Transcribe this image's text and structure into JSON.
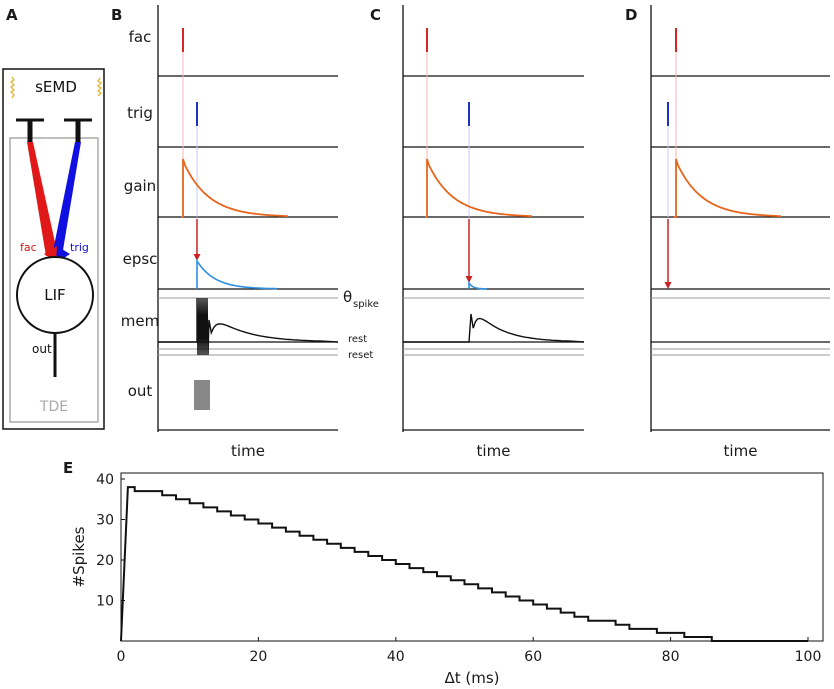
{
  "panels": {
    "A": {
      "letter": "A",
      "top_label": "sEMD",
      "fac_label": "fac",
      "trig_label": "trig",
      "neuron_label": "LIF",
      "out_label": "out",
      "box_label": "TDE"
    },
    "B": {
      "letter": "B"
    },
    "C": {
      "letter": "C"
    },
    "D": {
      "letter": "D"
    },
    "E": {
      "letter": "E"
    }
  },
  "traces": {
    "row_labels": [
      "fac",
      "trig",
      "gain",
      "epsc",
      "mem",
      "out"
    ],
    "xlabel": "time",
    "theta_label": "θ",
    "theta_sub": "spike",
    "rest_label": "rest",
    "reset_label": "reset"
  },
  "colors": {
    "fac": "#d62728",
    "trig": "#1f2fbf",
    "gain": "#e8661c",
    "epsc": "#2f8fe0",
    "arrow": "#cc2222",
    "threshold_line": "#999999",
    "tde_box": "#aaaaaa",
    "semd": "#e0b020"
  },
  "chart_data": {
    "type": "line",
    "title": "",
    "xlabel": "Δt (ms)",
    "ylabel": "#Spikes",
    "xlim": [
      0,
      100
    ],
    "ylim": [
      0,
      40
    ],
    "xticks": [
      0,
      20,
      40,
      60,
      80,
      100
    ],
    "yticks": [
      10,
      20,
      30,
      40
    ],
    "x": [
      0,
      1,
      2,
      4,
      6,
      8,
      10,
      12,
      14,
      16,
      18,
      20,
      22,
      24,
      26,
      28,
      30,
      32,
      34,
      36,
      38,
      40,
      42,
      44,
      46,
      48,
      50,
      52,
      54,
      56,
      58,
      60,
      62,
      64,
      66,
      68,
      70,
      72,
      74,
      76,
      78,
      80,
      82,
      84,
      86,
      88,
      90,
      100
    ],
    "values": [
      0,
      38,
      37,
      37,
      36,
      35,
      34,
      33,
      32,
      31,
      30,
      29,
      28,
      27,
      26,
      25,
      24,
      23,
      22,
      21,
      20,
      19,
      18,
      17,
      16,
      15,
      14,
      13,
      12,
      11,
      10,
      9,
      8,
      7,
      6,
      5,
      5,
      4,
      3,
      3,
      2,
      2,
      1,
      1,
      0,
      0,
      0,
      0
    ]
  }
}
